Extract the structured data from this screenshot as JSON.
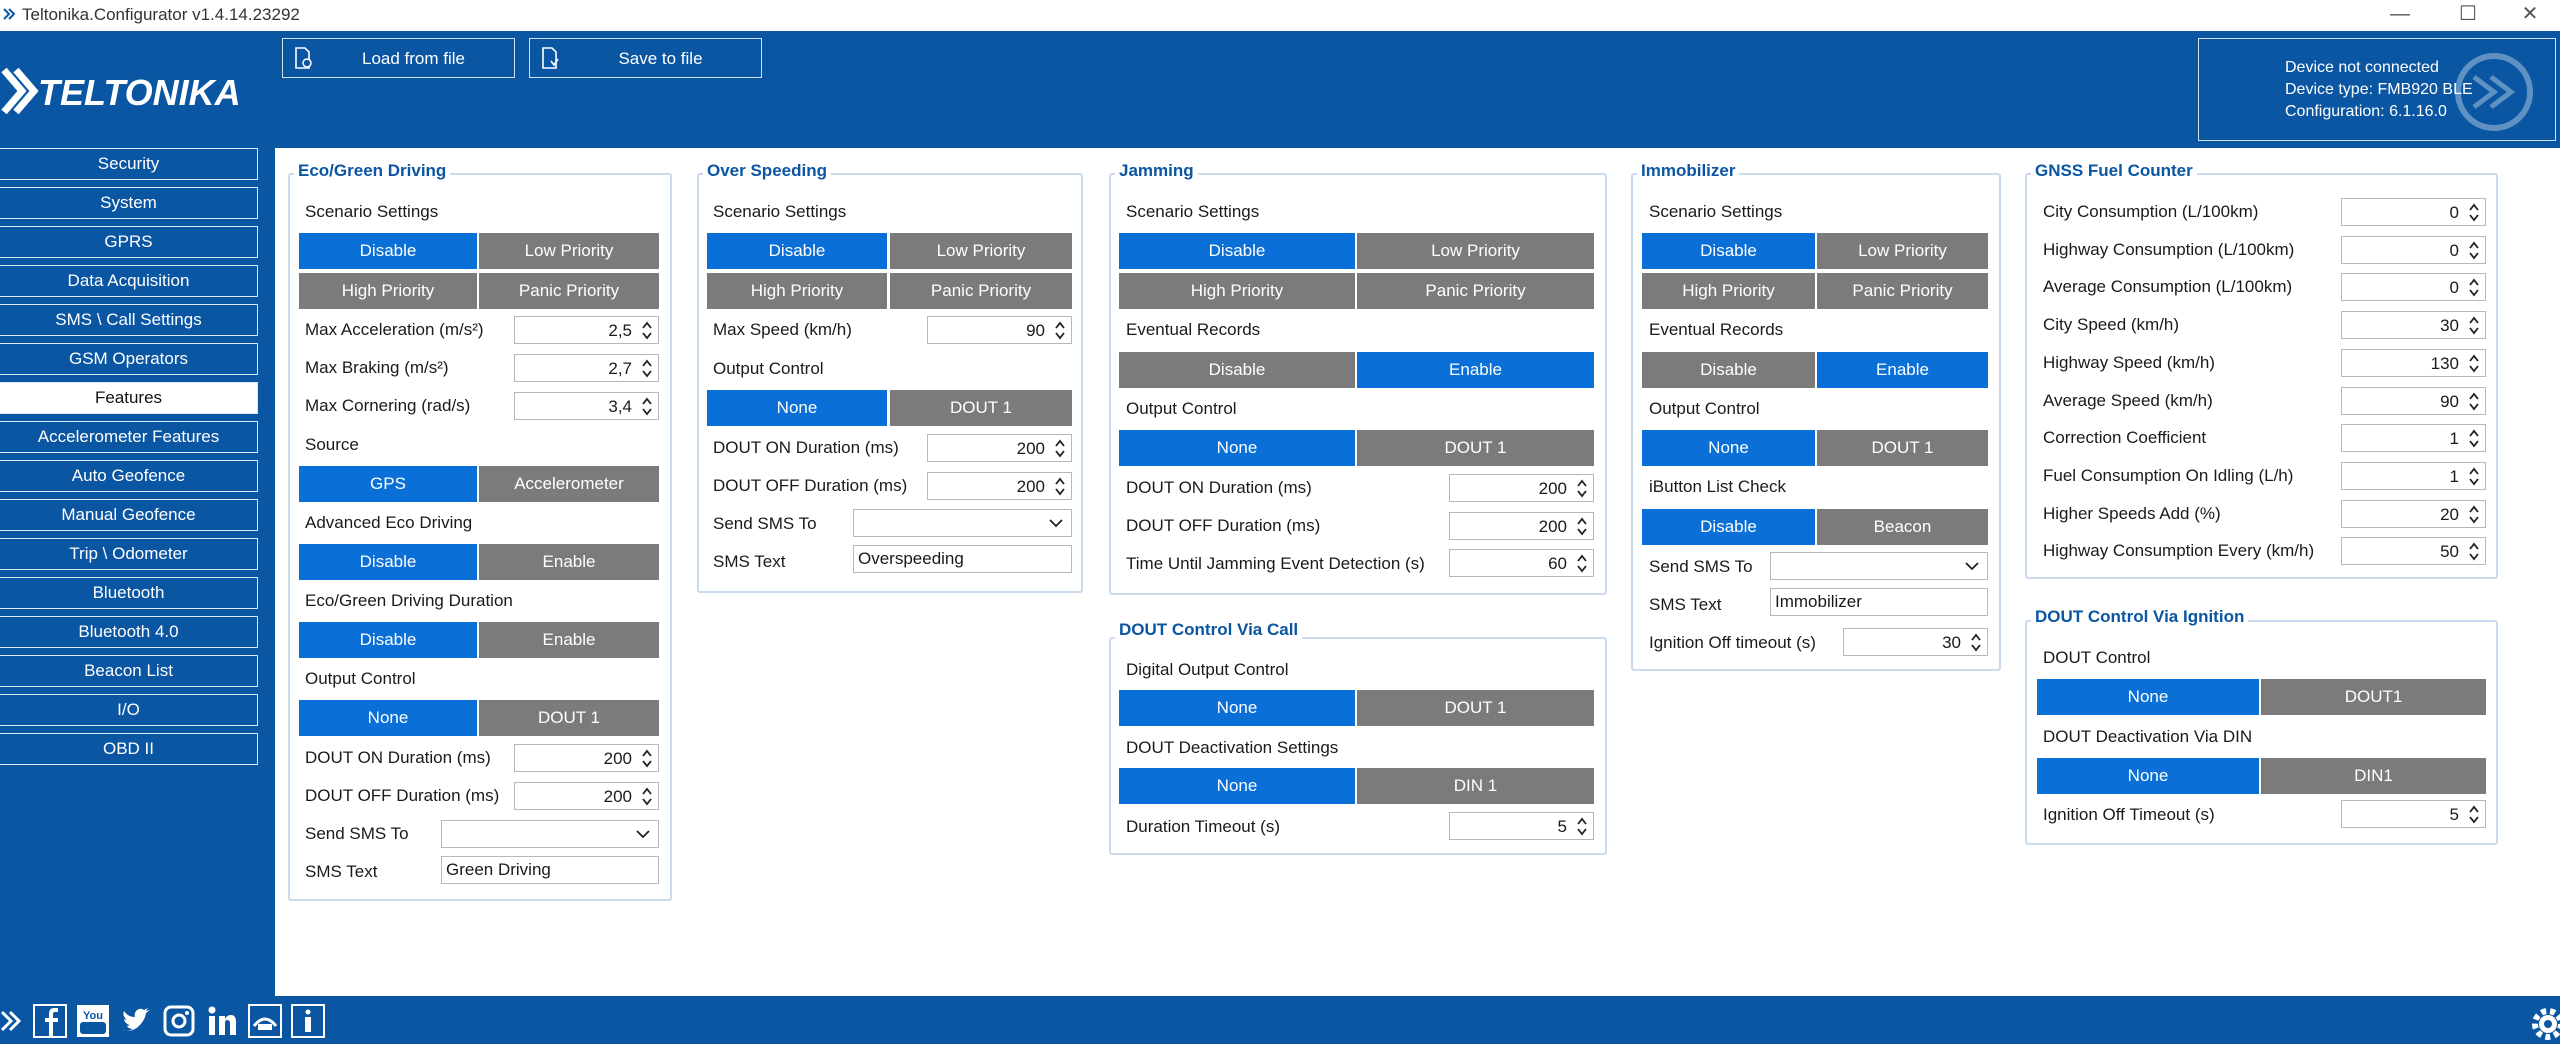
{
  "window": {
    "title": "Teltonika.Configurator v1.4.14.23292"
  },
  "header": {
    "logo_text": "TELTONIKA",
    "load_label": "Load from file",
    "save_label": "Save to file",
    "device_status": "Device not connected",
    "device_type": "Device type: FMB920 BLE",
    "configuration": "Configuration: 6.1.16.0"
  },
  "sidebar": {
    "items": [
      {
        "label": "Security"
      },
      {
        "label": "System"
      },
      {
        "label": "GPRS"
      },
      {
        "label": "Data Acquisition"
      },
      {
        "label": "SMS \\ Call Settings"
      },
      {
        "label": "GSM Operators"
      },
      {
        "label": "Features"
      },
      {
        "label": "Accelerometer Features"
      },
      {
        "label": "Auto Geofence"
      },
      {
        "label": "Manual Geofence"
      },
      {
        "label": "Trip \\ Odometer"
      },
      {
        "label": "Bluetooth"
      },
      {
        "label": "Bluetooth 4.0"
      },
      {
        "label": "Beacon List"
      },
      {
        "label": "I/O"
      },
      {
        "label": "OBD II"
      }
    ],
    "active": "Features"
  },
  "eco": {
    "title": "Eco/Green Driving",
    "scenario_label": "Scenario Settings",
    "disable": "Disable",
    "low": "Low Priority",
    "high": "High Priority",
    "panic": "Panic Priority",
    "max_acc_label": "Max Acceleration   (m/s²)",
    "max_acc": "2,5",
    "max_brk_label": "Max Braking   (m/s²)",
    "max_brk": "2,7",
    "max_cor_label": "Max Cornering   (rad/s)",
    "max_cor": "3,4",
    "source_label": "Source",
    "gps": "GPS",
    "accel": "Accelerometer",
    "adv_label": "Advanced Eco Driving",
    "adv_disable": "Disable",
    "adv_enable": "Enable",
    "dur_label": "Eco/Green Driving Duration",
    "dur_disable": "Disable",
    "dur_enable": "Enable",
    "out_label": "Output Control",
    "none": "None",
    "dout1": "DOUT 1",
    "don_label": "DOUT ON Duration   (ms)",
    "don": "200",
    "doff_label": "DOUT OFF Duration   (ms)",
    "doff": "200",
    "sms_to_label": "Send SMS To",
    "sms_text_label": "SMS Text",
    "sms_text": "Green Driving"
  },
  "overspeed": {
    "title": "Over Speeding",
    "scenario_label": "Scenario Settings",
    "disable": "Disable",
    "low": "Low Priority",
    "high": "High Priority",
    "panic": "Panic Priority",
    "max_speed_label": "Max Speed   (km/h)",
    "max_speed": "90",
    "out_label": "Output Control",
    "none": "None",
    "dout1": "DOUT 1",
    "don_label": "DOUT ON Duration   (ms)",
    "don": "200",
    "doff_label": "DOUT OFF Duration   (ms)",
    "doff": "200",
    "sms_to_label": "Send SMS To",
    "sms_text_label": "SMS Text",
    "sms_text": "Overspeeding"
  },
  "jamming": {
    "title": "Jamming",
    "scenario_label": "Scenario Settings",
    "disable": "Disable",
    "low": "Low Priority",
    "high": "High Priority",
    "panic": "Panic Priority",
    "ev_label": "Eventual Records",
    "ev_disable": "Disable",
    "ev_enable": "Enable",
    "out_label": "Output Control",
    "none": "None",
    "dout1": "DOUT 1",
    "don_label": "DOUT ON Duration   (ms)",
    "don": "200",
    "doff_label": "DOUT OFF Duration   (ms)",
    "doff": "200",
    "time_label": "Time Until Jamming Event Detection   (s)",
    "time": "60"
  },
  "doutcall": {
    "title": "DOUT Control Via Call",
    "dig_label": "Digital Output Control",
    "none": "None",
    "dout1": "DOUT 1",
    "deact_label": "DOUT Deactivation Settings",
    "deact_none": "None",
    "din1": "DIN 1",
    "timeout_label": "Duration Timeout   (s)",
    "timeout": "5"
  },
  "immob": {
    "title": "Immobilizer",
    "scenario_label": "Scenario Settings",
    "disable": "Disable",
    "low": "Low Priority",
    "high": "High Priority",
    "panic": "Panic Priority",
    "ev_label": "Eventual Records",
    "ev_disable": "Disable",
    "ev_enable": "Enable",
    "out_label": "Output Control",
    "none": "None",
    "dout1": "DOUT 1",
    "ibtn_label": "iButton List Check",
    "ibtn_disable": "Disable",
    "ibtn_beacon": "Beacon",
    "sms_to_label": "Send SMS To",
    "sms_text_label": "SMS Text",
    "sms_text": "Immobilizer",
    "ign_label": "Ignition Off timeout   (s)",
    "ign": "30"
  },
  "gnss": {
    "title": "GNSS Fuel Counter",
    "rows": [
      {
        "label": "City Consumption   (L/100km)",
        "value": "0"
      },
      {
        "label": "Highway Consumption   (L/100km)",
        "value": "0"
      },
      {
        "label": "Average Consumption   (L/100km)",
        "value": "0"
      },
      {
        "label": "City Speed   (km/h)",
        "value": "30"
      },
      {
        "label": "Highway Speed   (km/h)",
        "value": "130"
      },
      {
        "label": "Average Speed   (km/h)",
        "value": "90"
      },
      {
        "label": "Correction Coefficient",
        "value": "1"
      },
      {
        "label": "Fuel Consumption On Idling   (L/h)",
        "value": "1"
      },
      {
        "label": "Higher Speeds Add   (%)",
        "value": "20"
      },
      {
        "label": "Highway Consumption Every   (km/h)",
        "value": "50"
      }
    ]
  },
  "doutign": {
    "title": "DOUT Control Via Ignition",
    "dout_label": "DOUT Control",
    "none": "None",
    "dout1": "DOUT1",
    "deact_label": "DOUT Deactivation Via DIN",
    "deact_none": "None",
    "din1": "DIN1",
    "ign_label": "Ignition Off Timeout   (s)",
    "ign": "5"
  },
  "colors": {
    "brand_blue": "#0a56a3",
    "active_blue": "#0a6fd6",
    "inactive_gray": "#7b7b7b"
  }
}
